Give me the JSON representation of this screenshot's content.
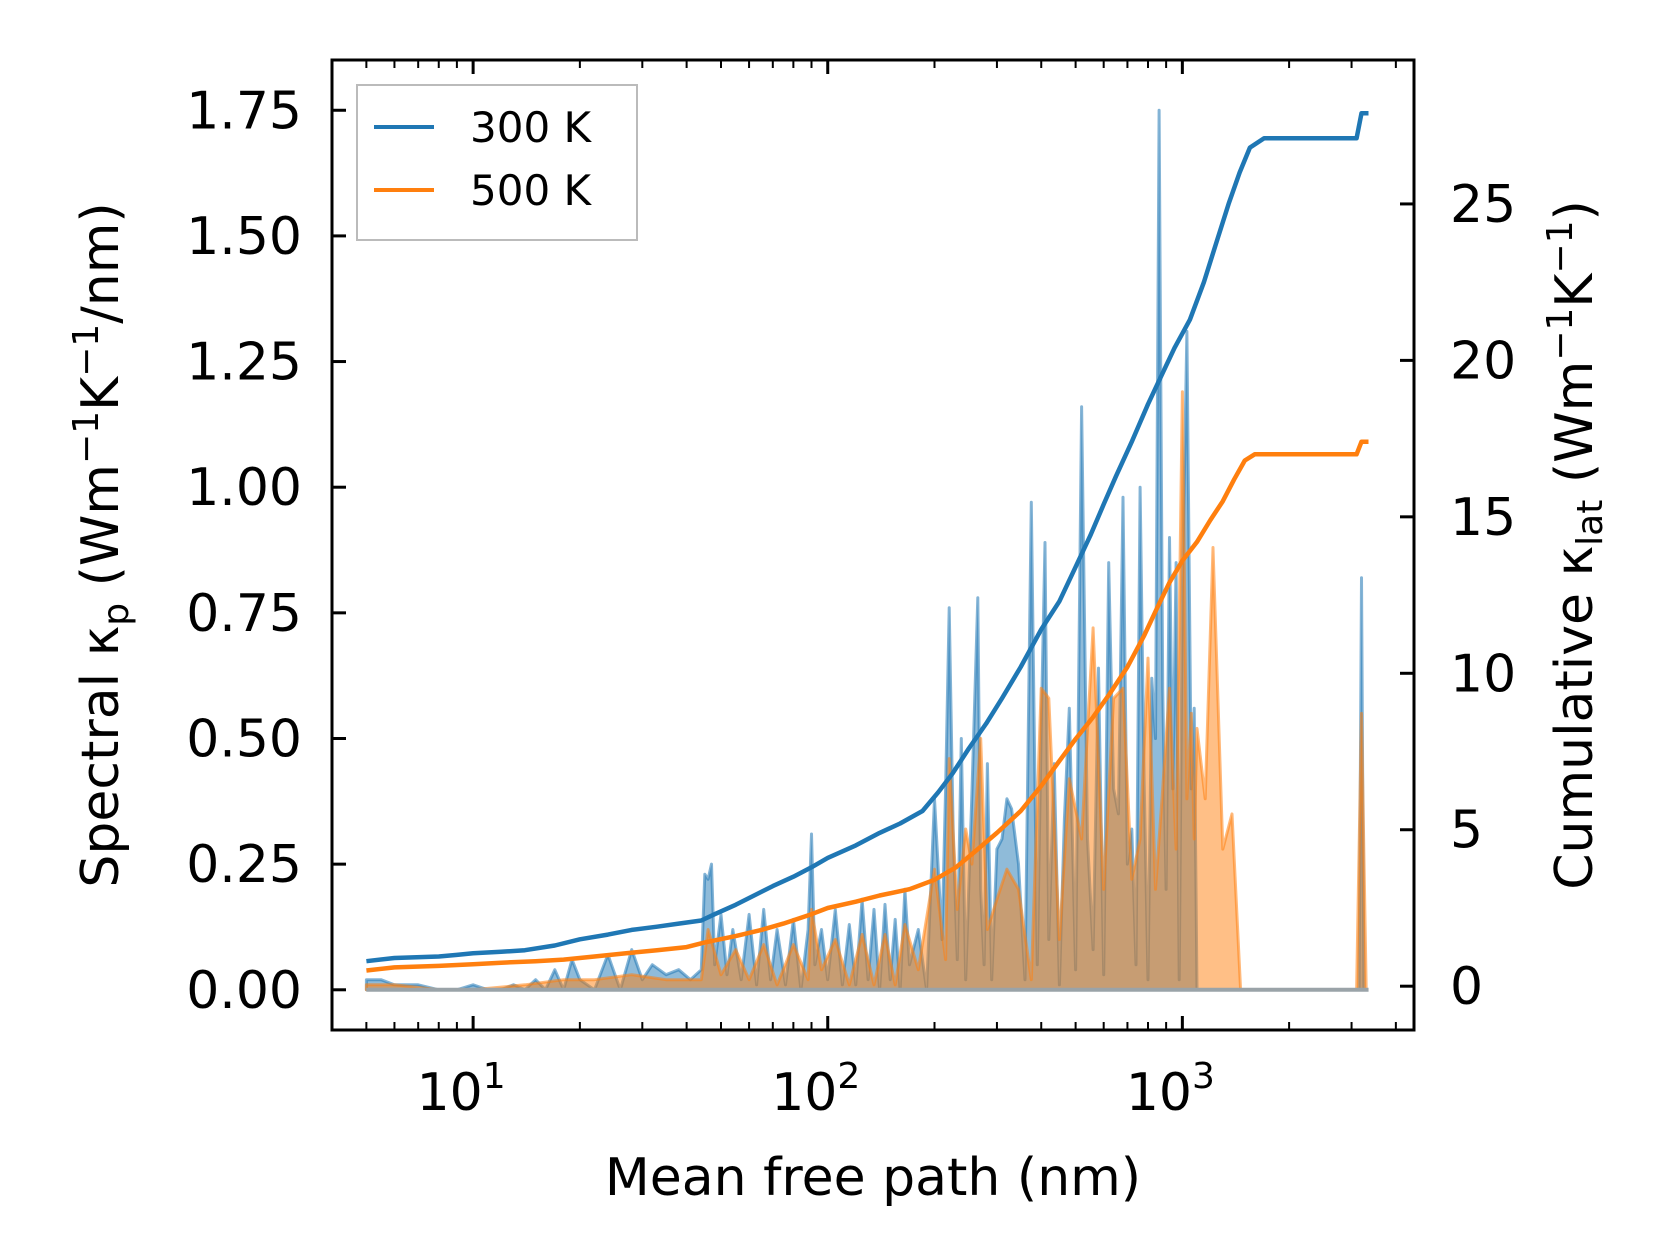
{
  "chart_data": {
    "type": "line",
    "xscale": "log",
    "xlabel": "Mean free path (nm)",
    "xlim": [
      4,
      4500
    ],
    "x_ticks": [
      {
        "value": 10,
        "base": "10",
        "exp": "1"
      },
      {
        "value": 100,
        "base": "10",
        "exp": "2"
      },
      {
        "value": 1000,
        "base": "10",
        "exp": "3"
      }
    ],
    "y_left": {
      "label_parts": [
        "Spectral κ",
        "p",
        " (Wm",
        "−1",
        "K",
        "−1",
        "/nm)"
      ],
      "lim": [
        -0.08,
        1.85
      ],
      "ticks": [
        "0.00",
        "0.25",
        "0.50",
        "0.75",
        "1.00",
        "1.25",
        "1.50",
        "1.75"
      ]
    },
    "y_right": {
      "label_parts": [
        "Cumulative κ",
        "lat",
        " (Wm",
        "−1",
        "K",
        "−1",
        ")"
      ],
      "lim": [
        -1.4,
        29.6
      ],
      "ticks": [
        "0",
        "5",
        "10",
        "15",
        "20",
        "25"
      ]
    },
    "legend": {
      "position": "top-left"
    },
    "series": [
      {
        "name": "300 K",
        "color": "#1f77b4",
        "axis": "right",
        "kind": "cumulative",
        "x": [
          5,
          6,
          8,
          9,
          10,
          12,
          14,
          17,
          20,
          24,
          28,
          33,
          38,
          44,
          48,
          55,
          62,
          70,
          80,
          90,
          100,
          120,
          140,
          160,
          185,
          205,
          225,
          250,
          280,
          310,
          350,
          400,
          450,
          500,
          550,
          600,
          650,
          720,
          800,
          880,
          950,
          1050,
          1150,
          1250,
          1350,
          1450,
          1550,
          1700,
          3100,
          3200,
          3350
        ],
        "y": [
          0.8,
          0.9,
          0.95,
          1.0,
          1.05,
          1.1,
          1.15,
          1.3,
          1.5,
          1.65,
          1.8,
          1.9,
          2.0,
          2.1,
          2.3,
          2.6,
          2.9,
          3.2,
          3.5,
          3.8,
          4.1,
          4.5,
          4.9,
          5.2,
          5.6,
          6.2,
          6.8,
          7.6,
          8.4,
          9.2,
          10.2,
          11.4,
          12.3,
          13.4,
          14.4,
          15.4,
          16.3,
          17.4,
          18.6,
          19.6,
          20.4,
          21.3,
          22.5,
          23.8,
          25.0,
          26.0,
          26.8,
          27.1,
          27.1,
          27.9,
          27.9
        ]
      },
      {
        "name": "500 K",
        "color": "#ff7f0e",
        "axis": "right",
        "kind": "cumulative",
        "x": [
          5,
          6,
          8,
          10,
          12,
          15,
          18,
          22,
          27,
          33,
          40,
          45,
          55,
          65,
          75,
          90,
          100,
          120,
          140,
          170,
          200,
          230,
          260,
          300,
          350,
          400,
          450,
          500,
          560,
          620,
          700,
          780,
          850,
          920,
          1000,
          1100,
          1200,
          1300,
          1400,
          1500,
          1600,
          1700,
          3100,
          3200,
          3350
        ],
        "y": [
          0.5,
          0.6,
          0.65,
          0.7,
          0.75,
          0.8,
          0.85,
          0.95,
          1.05,
          1.15,
          1.25,
          1.4,
          1.6,
          1.8,
          2.0,
          2.3,
          2.5,
          2.7,
          2.9,
          3.1,
          3.4,
          3.8,
          4.3,
          4.9,
          5.6,
          6.4,
          7.2,
          7.9,
          8.6,
          9.3,
          10.2,
          11.2,
          12.1,
          12.9,
          13.6,
          14.2,
          14.9,
          15.5,
          16.2,
          16.8,
          17.0,
          17.0,
          17.0,
          17.4,
          17.4
        ]
      }
    ],
    "spectral_series": [
      {
        "name": "300 K spectral",
        "color": "#1f77b4",
        "axis": "left",
        "kind": "filled-spikes",
        "x": [
          5,
          5.5,
          6,
          7,
          8,
          9,
          10,
          11,
          12,
          13,
          14,
          15,
          16,
          17,
          18,
          19,
          20,
          22,
          24,
          26,
          28,
          30,
          32,
          35,
          38,
          41,
          44,
          45,
          46,
          47,
          48,
          50,
          52,
          54,
          57,
          60,
          63,
          66,
          69,
          72,
          76,
          80,
          84,
          88,
          90,
          92,
          96,
          100,
          105,
          110,
          115,
          120,
          125,
          130,
          135,
          140,
          145,
          150,
          155,
          160,
          165,
          170,
          180,
          190,
          200,
          210,
          215,
          220,
          226,
          232,
          238,
          245,
          255,
          265,
          270,
          276,
          282,
          290,
          300,
          310,
          320,
          330,
          345,
          360,
          375,
          390,
          400,
          410,
          420,
          435,
          450,
          465,
          480,
          500,
          520,
          540,
          560,
          580,
          600,
          620,
          640,
          660,
          680,
          700,
          720,
          740,
          760,
          780,
          800,
          820,
          840,
          860,
          880,
          900,
          920,
          940,
          960,
          980,
          1000,
          1030,
          1060,
          1080,
          1100,
          1130,
          1160,
          1190,
          1220,
          1260,
          1300,
          1340,
          1380,
          1420,
          1460,
          1500,
          1540,
          1580,
          1620,
          1660,
          1700,
          1740,
          1780,
          3100,
          3150,
          3200,
          3250,
          3300
        ],
        "y": [
          0.02,
          0.02,
          0.01,
          0.01,
          0.0,
          0.0,
          0.01,
          0.0,
          0.0,
          0.01,
          0.0,
          0.02,
          0.0,
          0.04,
          0.0,
          0.06,
          0.02,
          0.0,
          0.07,
          0.0,
          0.08,
          0.02,
          0.05,
          0.03,
          0.04,
          0.02,
          0.04,
          0.23,
          0.22,
          0.25,
          0.05,
          0.15,
          0.03,
          0.12,
          0.02,
          0.15,
          0.01,
          0.16,
          0.02,
          0.12,
          0.01,
          0.14,
          0.0,
          0.12,
          0.31,
          0.05,
          0.12,
          0.02,
          0.16,
          0.01,
          0.13,
          0.01,
          0.18,
          0.02,
          0.16,
          0.0,
          0.17,
          0.02,
          0.14,
          0.0,
          0.2,
          0.05,
          0.12,
          0.0,
          0.38,
          0.1,
          0.4,
          0.76,
          0.3,
          0.06,
          0.5,
          0.02,
          0.39,
          0.78,
          0.2,
          0.05,
          0.45,
          0.02,
          0.28,
          0.3,
          0.38,
          0.36,
          0.25,
          0.02,
          0.97,
          0.05,
          0.52,
          0.89,
          0.1,
          0.45,
          0.01,
          0.34,
          0.56,
          0.04,
          1.16,
          0.3,
          0.08,
          0.64,
          0.03,
          0.85,
          0.4,
          0.35,
          0.98,
          0.25,
          0.32,
          0.05,
          1.0,
          0.42,
          0.02,
          0.62,
          0.5,
          1.75,
          0.6,
          0.2,
          0.9,
          0.4,
          0.85,
          0.02,
          0.8,
          1.31,
          0.4,
          0.56,
          0.0,
          0.0,
          0.0,
          0.0,
          0.0,
          0.0,
          0.0,
          0.0,
          0.0,
          0.0,
          0.0,
          0.0,
          0.0,
          0.0,
          0.0,
          0.0,
          0.0,
          0.0,
          0.0,
          0.0,
          0.0,
          0.82,
          0.0,
          0.0
        ]
      },
      {
        "name": "500 K spectral",
        "color": "#ff7f0e",
        "axis": "left",
        "kind": "filled-spikes",
        "x": [
          5,
          6,
          8,
          10,
          14,
          18,
          22,
          28,
          35,
          44,
          46,
          50,
          55,
          60,
          66,
          72,
          80,
          88,
          90,
          96,
          105,
          115,
          125,
          135,
          145,
          155,
          165,
          180,
          200,
          215,
          220,
          232,
          245,
          255,
          270,
          282,
          300,
          320,
          345,
          375,
          400,
          420,
          450,
          480,
          520,
          560,
          600,
          640,
          680,
          720,
          760,
          800,
          840,
          880,
          920,
          960,
          1000,
          1030,
          1060,
          1080,
          1100,
          1160,
          1220,
          1300,
          1380,
          1460,
          1540,
          1620,
          1700,
          1780,
          3100,
          3200,
          3300
        ],
        "y": [
          0.01,
          0.01,
          0.0,
          0.0,
          0.01,
          0.02,
          0.02,
          0.03,
          0.02,
          0.02,
          0.12,
          0.03,
          0.08,
          0.02,
          0.09,
          0.01,
          0.09,
          0.02,
          0.16,
          0.04,
          0.1,
          0.01,
          0.11,
          0.01,
          0.11,
          0.01,
          0.13,
          0.04,
          0.24,
          0.06,
          0.46,
          0.16,
          0.32,
          0.25,
          0.5,
          0.12,
          0.18,
          0.24,
          0.2,
          0.02,
          0.6,
          0.58,
          0.1,
          0.42,
          0.3,
          0.72,
          0.2,
          0.58,
          0.6,
          0.22,
          0.3,
          0.66,
          0.2,
          0.4,
          0.6,
          0.28,
          1.19,
          0.38,
          0.55,
          0.3,
          0.52,
          0.38,
          0.88,
          0.28,
          0.35,
          0.0,
          0.0,
          0.0,
          0.0,
          0.0,
          0.0,
          0.55,
          0.0
        ]
      }
    ]
  }
}
